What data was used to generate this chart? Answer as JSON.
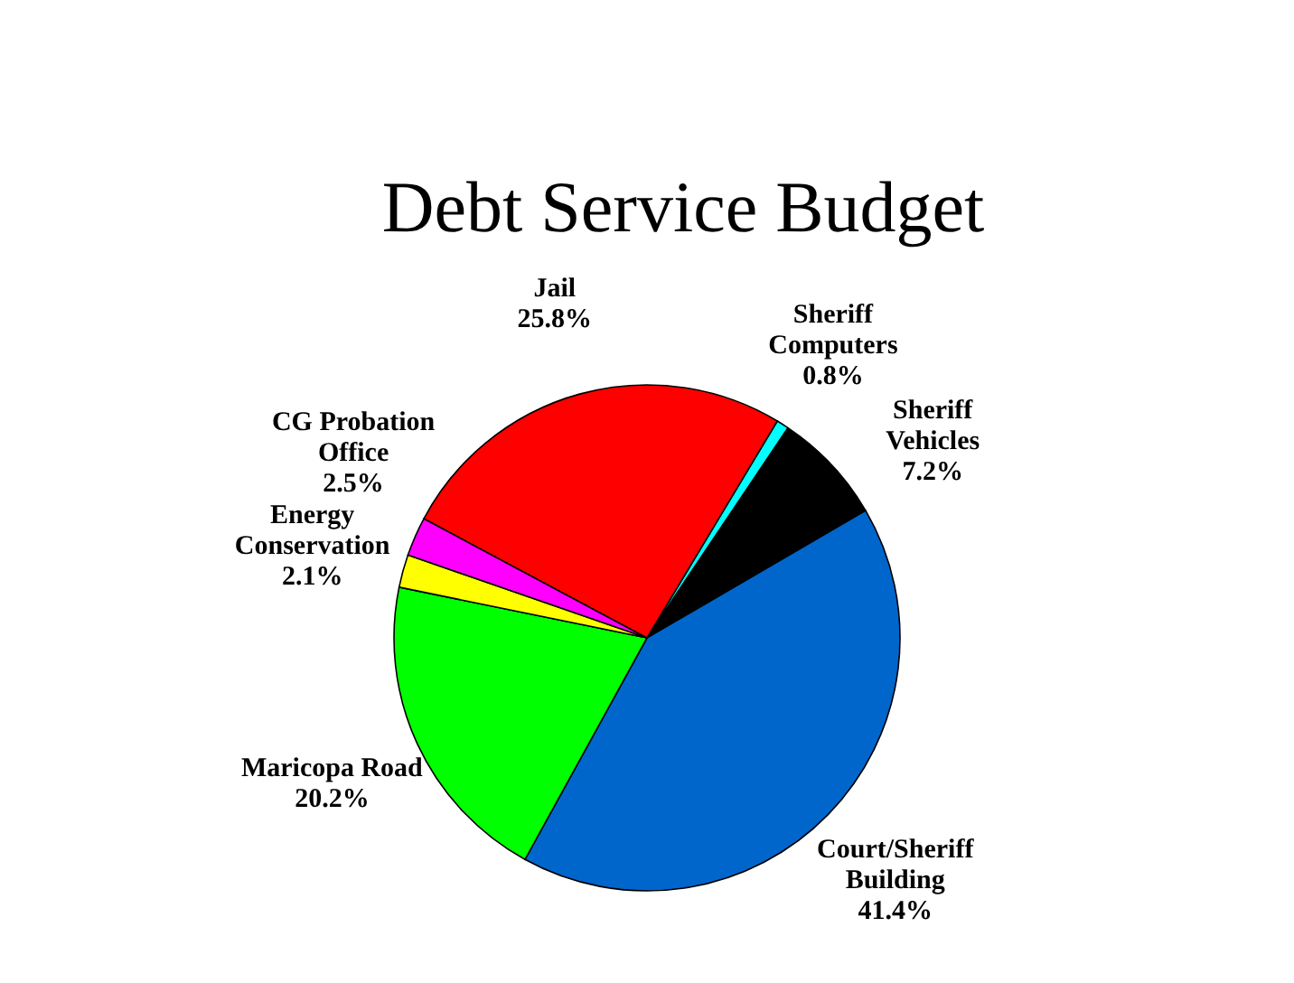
{
  "chart_data": {
    "type": "pie",
    "title": "Debt Service Budget",
    "categories": [
      "Sheriff Computers",
      "Sheriff Vehicles",
      "Court/Sheriff Building",
      "Maricopa Road",
      "Energy Conservation",
      "CG Probation Office",
      "Jail"
    ],
    "values": [
      0.8,
      7.2,
      41.4,
      20.2,
      2.1,
      2.5,
      25.8
    ],
    "value_labels": [
      "0.8%",
      "7.2%",
      "41.4%",
      "20.2%",
      "2.1%",
      "2.5%",
      "25.8%"
    ],
    "colors": [
      "#00ffff",
      "#000000",
      "#0066cc",
      "#00ff00",
      "#ffff00",
      "#ff00ff",
      "#ff0000"
    ]
  }
}
